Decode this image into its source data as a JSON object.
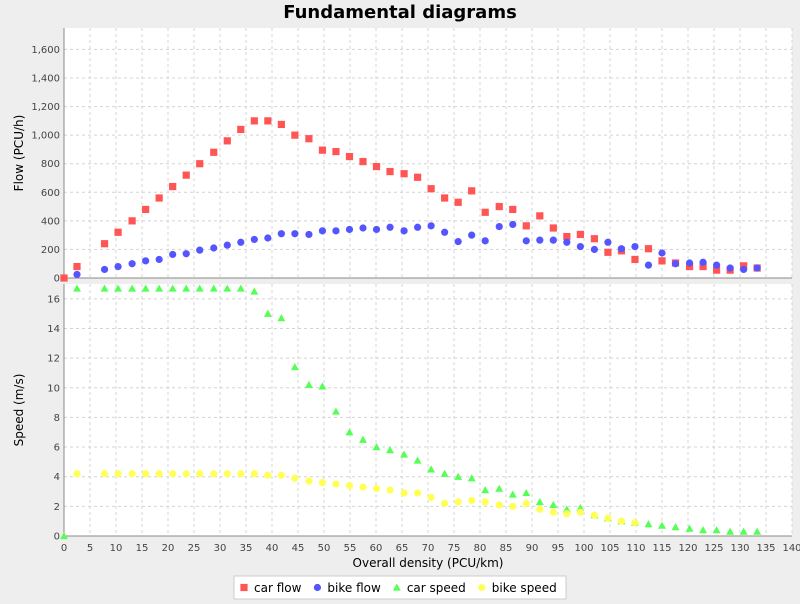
{
  "chart_data": {
    "type": "scatter",
    "title": "Fundamental diagrams",
    "xlabel": "Overall density (PCU/km)",
    "xlim": [
      0,
      140
    ],
    "x_ticks": [
      0,
      5,
      10,
      15,
      20,
      25,
      30,
      35,
      40,
      45,
      50,
      55,
      60,
      65,
      70,
      75,
      80,
      85,
      90,
      95,
      100,
      105,
      110,
      115,
      120,
      125,
      130,
      135,
      140
    ],
    "grid": true,
    "legend_position": "bottom-center",
    "panels": [
      {
        "ylabel": "Flow (PCU/h)",
        "ylim": [
          0,
          1750
        ],
        "y_ticks": [
          0,
          200,
          400,
          600,
          800,
          1000,
          1200,
          1400,
          1600
        ],
        "y_tick_labels": [
          "0",
          "200",
          "400",
          "600",
          "800",
          "1,000",
          "1,200",
          "1,400",
          "1,600"
        ],
        "series": [
          {
            "name": "car flow",
            "marker": "square",
            "color": "#ff5555",
            "points": [
              [
                0,
                0
              ],
              [
                2.5,
                80
              ],
              [
                7.8,
                240
              ],
              [
                10.4,
                320
              ],
              [
                13.1,
                400
              ],
              [
                15.7,
                480
              ],
              [
                18.3,
                560
              ],
              [
                20.9,
                640
              ],
              [
                23.5,
                720
              ],
              [
                26.1,
                800
              ],
              [
                28.8,
                880
              ],
              [
                31.4,
                960
              ],
              [
                34,
                1040
              ],
              [
                36.6,
                1100
              ],
              [
                39.2,
                1100
              ],
              [
                41.8,
                1075
              ],
              [
                44.4,
                1000
              ],
              [
                47.1,
                975
              ],
              [
                49.7,
                895
              ],
              [
                52.3,
                885
              ],
              [
                54.9,
                850
              ],
              [
                57.5,
                815
              ],
              [
                60.1,
                780
              ],
              [
                62.7,
                745
              ],
              [
                65.4,
                730
              ],
              [
                68,
                705
              ],
              [
                70.6,
                625
              ],
              [
                73.2,
                560
              ],
              [
                75.8,
                530
              ],
              [
                78.4,
                610
              ],
              [
                81,
                460
              ],
              [
                83.7,
                500
              ],
              [
                86.3,
                480
              ],
              [
                88.9,
                365
              ],
              [
                91.5,
                435
              ],
              [
                94.1,
                350
              ],
              [
                96.7,
                290
              ],
              [
                99.3,
                305
              ],
              [
                102,
                275
              ],
              [
                104.6,
                180
              ],
              [
                107.2,
                190
              ],
              [
                109.8,
                130
              ],
              [
                112.4,
                205
              ],
              [
                115,
                120
              ],
              [
                117.6,
                105
              ],
              [
                120.3,
                80
              ],
              [
                122.9,
                80
              ],
              [
                125.5,
                55
              ],
              [
                128.1,
                55
              ],
              [
                130.7,
                85
              ],
              [
                133.3,
                70
              ]
            ]
          },
          {
            "name": "bike flow",
            "marker": "circle",
            "color": "#5555ff",
            "points": [
              [
                2.5,
                25
              ],
              [
                7.8,
                60
              ],
              [
                10.4,
                80
              ],
              [
                13.1,
                100
              ],
              [
                15.7,
                120
              ],
              [
                18.3,
                130
              ],
              [
                20.9,
                165
              ],
              [
                23.5,
                170
              ],
              [
                26.1,
                195
              ],
              [
                28.8,
                210
              ],
              [
                31.4,
                230
              ],
              [
                34,
                250
              ],
              [
                36.6,
                270
              ],
              [
                39.2,
                280
              ],
              [
                41.8,
                310
              ],
              [
                44.4,
                310
              ],
              [
                47.1,
                305
              ],
              [
                49.7,
                330
              ],
              [
                52.3,
                330
              ],
              [
                54.9,
                340
              ],
              [
                57.5,
                350
              ],
              [
                60.1,
                340
              ],
              [
                62.7,
                355
              ],
              [
                65.4,
                330
              ],
              [
                68,
                355
              ],
              [
                70.6,
                365
              ],
              [
                73.2,
                320
              ],
              [
                75.8,
                255
              ],
              [
                78.4,
                300
              ],
              [
                81,
                260
              ],
              [
                83.7,
                360
              ],
              [
                86.3,
                375
              ],
              [
                88.9,
                260
              ],
              [
                91.5,
                265
              ],
              [
                94.1,
                265
              ],
              [
                96.7,
                250
              ],
              [
                99.3,
                220
              ],
              [
                102,
                200
              ],
              [
                104.6,
                250
              ],
              [
                107.2,
                205
              ],
              [
                109.8,
                220
              ],
              [
                112.4,
                90
              ],
              [
                115,
                175
              ],
              [
                117.6,
                100
              ],
              [
                120.3,
                105
              ],
              [
                122.9,
                110
              ],
              [
                125.5,
                90
              ],
              [
                128.1,
                70
              ],
              [
                130.7,
                60
              ],
              [
                133.3,
                70
              ]
            ]
          }
        ]
      },
      {
        "ylabel": "Speed (m/s)",
        "ylim": [
          0,
          17
        ],
        "y_ticks": [
          0,
          2,
          4,
          6,
          8,
          10,
          12,
          14,
          16
        ],
        "y_tick_labels": [
          "0",
          "2",
          "4",
          "6",
          "8",
          "10",
          "12",
          "14",
          "16"
        ],
        "series": [
          {
            "name": "car speed",
            "marker": "triangle",
            "color": "#55ff55",
            "points": [
              [
                0,
                0
              ],
              [
                2.5,
                16.7
              ],
              [
                7.8,
                16.7
              ],
              [
                10.4,
                16.7
              ],
              [
                13.1,
                16.7
              ],
              [
                15.7,
                16.7
              ],
              [
                18.3,
                16.7
              ],
              [
                20.9,
                16.7
              ],
              [
                23.5,
                16.7
              ],
              [
                26.1,
                16.7
              ],
              [
                28.8,
                16.7
              ],
              [
                31.4,
                16.7
              ],
              [
                34,
                16.7
              ],
              [
                36.6,
                16.5
              ],
              [
                39.2,
                15
              ],
              [
                41.8,
                14.7
              ],
              [
                44.4,
                11.4
              ],
              [
                47.1,
                10.2
              ],
              [
                49.7,
                10.1
              ],
              [
                52.3,
                8.4
              ],
              [
                54.9,
                7
              ],
              [
                57.5,
                6.5
              ],
              [
                60.1,
                6
              ],
              [
                62.7,
                5.8
              ],
              [
                65.4,
                5.5
              ],
              [
                68,
                5.1
              ],
              [
                70.6,
                4.5
              ],
              [
                73.2,
                4.2
              ],
              [
                75.8,
                4
              ],
              [
                78.4,
                3.9
              ],
              [
                81,
                3.1
              ],
              [
                83.7,
                3.2
              ],
              [
                86.3,
                2.8
              ],
              [
                88.9,
                2.9
              ],
              [
                91.5,
                2.3
              ],
              [
                94.1,
                2.1
              ],
              [
                96.7,
                1.8
              ],
              [
                99.3,
                1.9
              ],
              [
                102,
                1.4
              ],
              [
                104.6,
                1.2
              ],
              [
                107.2,
                1
              ],
              [
                109.8,
                0.9
              ],
              [
                112.4,
                0.8
              ],
              [
                115,
                0.7
              ],
              [
                117.6,
                0.6
              ],
              [
                120.3,
                0.5
              ],
              [
                122.9,
                0.4
              ],
              [
                125.5,
                0.4
              ],
              [
                128.1,
                0.3
              ],
              [
                130.7,
                0.3
              ],
              [
                133.3,
                0.3
              ]
            ]
          },
          {
            "name": "bike speed",
            "marker": "circle",
            "color": "#ffff55",
            "points": [
              [
                2.5,
                4.2
              ],
              [
                7.8,
                4.2
              ],
              [
                10.4,
                4.2
              ],
              [
                13.1,
                4.2
              ],
              [
                15.7,
                4.2
              ],
              [
                18.3,
                4.2
              ],
              [
                20.9,
                4.2
              ],
              [
                23.5,
                4.2
              ],
              [
                26.1,
                4.2
              ],
              [
                28.8,
                4.2
              ],
              [
                31.4,
                4.2
              ],
              [
                34,
                4.2
              ],
              [
                36.6,
                4.2
              ],
              [
                39.2,
                4.1
              ],
              [
                41.8,
                4.1
              ],
              [
                44.4,
                3.9
              ],
              [
                47.1,
                3.7
              ],
              [
                49.7,
                3.6
              ],
              [
                52.3,
                3.5
              ],
              [
                54.9,
                3.4
              ],
              [
                57.5,
                3.3
              ],
              [
                60.1,
                3.2
              ],
              [
                62.7,
                3.1
              ],
              [
                65.4,
                2.9
              ],
              [
                68,
                2.9
              ],
              [
                70.6,
                2.6
              ],
              [
                73.2,
                2.2
              ],
              [
                75.8,
                2.3
              ],
              [
                78.4,
                2.4
              ],
              [
                81,
                2.3
              ],
              [
                83.7,
                2.1
              ],
              [
                86.3,
                2
              ],
              [
                88.9,
                2.2
              ],
              [
                91.5,
                1.8
              ],
              [
                94.1,
                1.6
              ],
              [
                96.7,
                1.5
              ],
              [
                99.3,
                1.6
              ],
              [
                102,
                1.4
              ],
              [
                104.6,
                1.2
              ],
              [
                107.2,
                1
              ],
              [
                109.8,
                0.9
              ]
            ]
          }
        ]
      }
    ]
  }
}
